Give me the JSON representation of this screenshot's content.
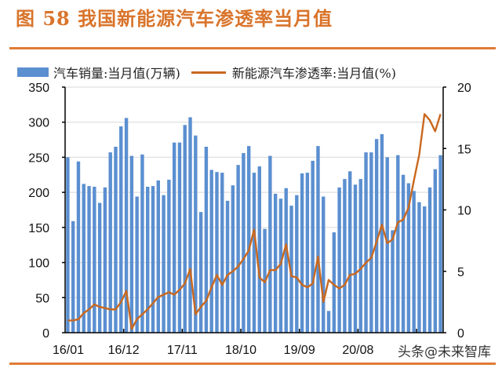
{
  "header": {
    "title": "图 58 我国新能源汽车渗透率当月值"
  },
  "legend": {
    "bar_label": "汽车销量:当月值(万辆)",
    "line_label": "新能源汽车渗透率:当月值(%)"
  },
  "watermark": "头条@未来智库",
  "colors": {
    "bar": "#5b8fd0",
    "line": "#c9681f",
    "title": "#d9742b",
    "rule": "#e07b34",
    "grid": "#d9d9d9"
  },
  "chart_data": {
    "type": "bar+line",
    "title": "图 58 我国新能源汽车渗透率当月值",
    "x_tick_labels": [
      "16/01",
      "16/12",
      "17/11",
      "18/10",
      "19/09",
      "20/08"
    ],
    "left_axis": {
      "label": "汽车销量:当月值(万辆)",
      "ylim": [
        0,
        350
      ],
      "ticks": [
        0,
        50,
        100,
        150,
        200,
        250,
        300,
        350
      ]
    },
    "right_axis": {
      "label": "新能源汽车渗透率:当月值(%)",
      "ylim": [
        0,
        20
      ],
      "ticks": [
        0,
        5,
        10,
        15,
        20
      ]
    },
    "grid": true,
    "legend_position": "top",
    "x_start": "16/01",
    "x_end": "21/11",
    "series": [
      {
        "name": "汽车销量:当月值(万辆)",
        "type": "bar",
        "axis": "left",
        "values": [
          250,
          159,
          244,
          212,
          209,
          208,
          185,
          207,
          257,
          265,
          294,
          306,
          252,
          194,
          254,
          208,
          209,
          217,
          196,
          218,
          271,
          271,
          296,
          307,
          281,
          172,
          265,
          232,
          229,
          228,
          188,
          210,
          239,
          256,
          266,
          228,
          237,
          148,
          252,
          198,
          191,
          206,
          181,
          196,
          227,
          228,
          245,
          266,
          194,
          31,
          143,
          207,
          219,
          230,
          211,
          219,
          257,
          257,
          276,
          283,
          250,
          146,
          253,
          225,
          213,
          202,
          186,
          180,
          207,
          233,
          253
        ]
      },
      {
        "name": "新能源汽车渗透率:当月值(%)",
        "type": "line",
        "axis": "right",
        "values": [
          1.0,
          1.0,
          1.1,
          1.6,
          1.9,
          2.3,
          2.1,
          2.0,
          1.9,
          1.9,
          2.5,
          3.4,
          0.3,
          1.1,
          1.5,
          1.9,
          2.4,
          2.9,
          3.1,
          3.3,
          3.1,
          3.5,
          4.0,
          5.2,
          1.5,
          2.1,
          2.6,
          3.7,
          4.7,
          3.9,
          4.7,
          5.0,
          5.4,
          6.0,
          6.7,
          8.4,
          4.5,
          4.1,
          5.1,
          5.1,
          5.6,
          7.2,
          4.6,
          4.5,
          3.9,
          3.7,
          4.0,
          6.2,
          2.5,
          4.3,
          3.9,
          3.6,
          3.9,
          4.7,
          4.8,
          5.2,
          5.7,
          6.1,
          7.4,
          8.8,
          7.3,
          7.6,
          9.0,
          9.2,
          10.2,
          12.4,
          14.5,
          17.8,
          17.3,
          16.4,
          17.8
        ]
      }
    ]
  }
}
